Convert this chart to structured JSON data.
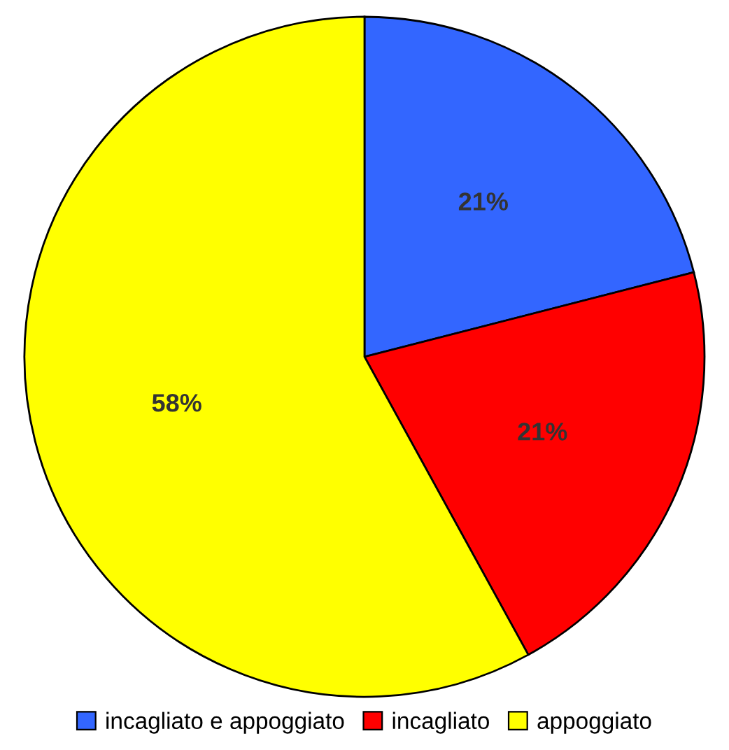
{
  "chart_data": {
    "type": "pie",
    "categories": [
      "incagliato e appoggiato",
      "incagliato",
      "appoggiato"
    ],
    "values": [
      21,
      21,
      58
    ],
    "value_labels": [
      "21%",
      "21%",
      "58%"
    ],
    "colors": [
      "#3366ff",
      "#ff0000",
      "#ffff00"
    ],
    "legend": "bottom"
  }
}
